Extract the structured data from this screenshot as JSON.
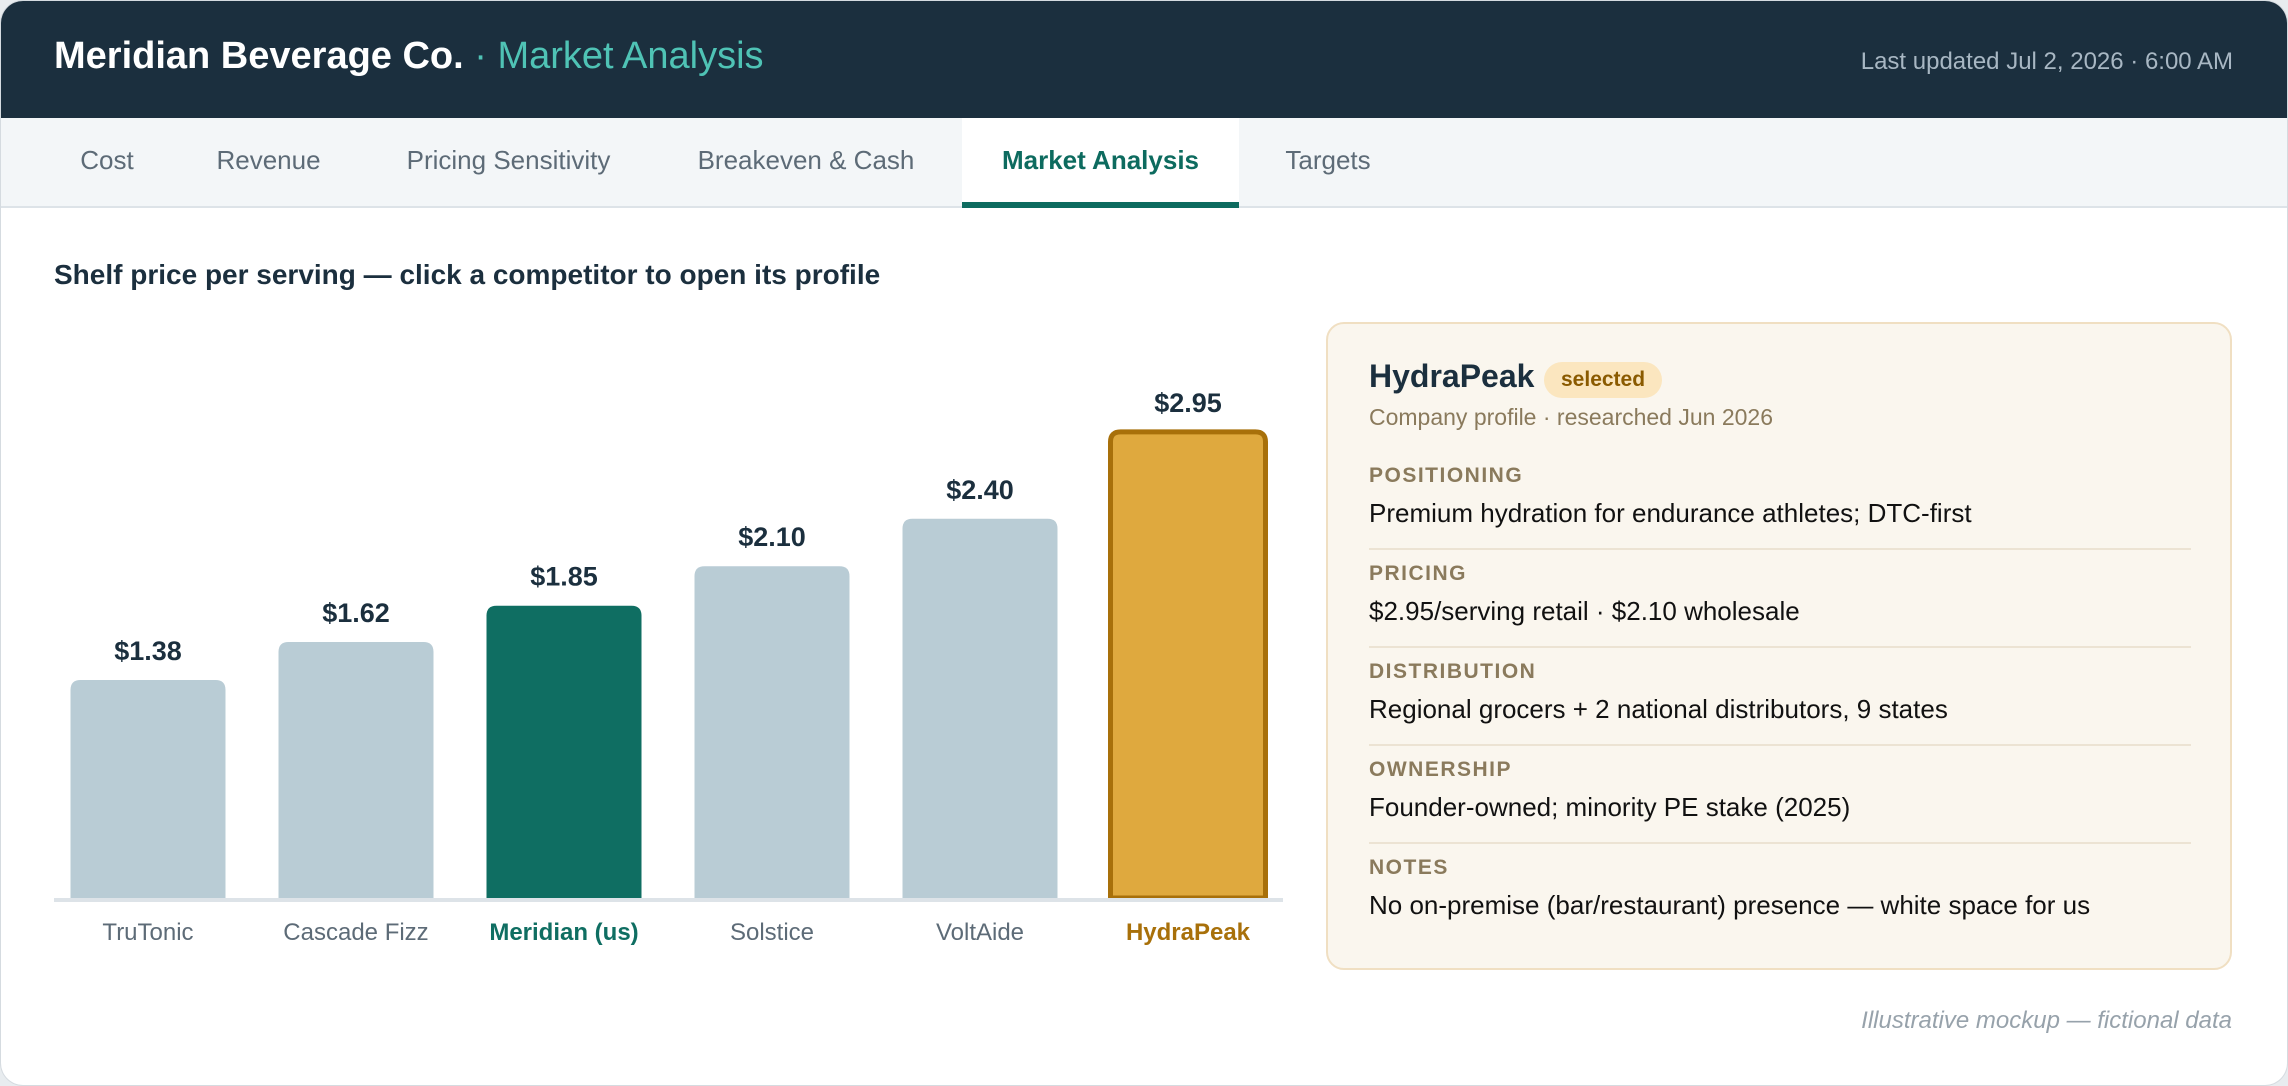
{
  "header": {
    "company": "Meridian Beverage Co.",
    "section": "· Market Analysis",
    "last_updated": "Last updated Jul 2, 2026 · 6:00 AM"
  },
  "tabs": [
    {
      "label": "Cost",
      "active": false
    },
    {
      "label": "Revenue",
      "active": false
    },
    {
      "label": "Pricing Sensitivity",
      "active": false
    },
    {
      "label": "Breakeven & Cash",
      "active": false
    },
    {
      "label": "Market Analysis",
      "active": true
    },
    {
      "label": "Targets",
      "active": false
    }
  ],
  "main": {
    "title": "Shelf price per serving — click a competitor to open its profile"
  },
  "chart_data": {
    "type": "bar",
    "title": "Shelf price per serving — click a competitor to open its profile",
    "categories": [
      "TruTonic",
      "Cascade Fizz",
      "Meridian (us)",
      "Solstice",
      "VoltAide",
      "HydraPeak"
    ],
    "values": [
      1.38,
      1.62,
      1.85,
      2.1,
      2.4,
      2.95
    ],
    "value_labels": [
      "$1.38",
      "$1.62",
      "$1.85",
      "$2.10",
      "$2.40",
      "$2.95"
    ],
    "highlight": {
      "Meridian (us)": "own",
      "HydraPeak": "selected"
    },
    "colors": {
      "default": "#b9ccd5",
      "own": "#0f6e62",
      "selected": "#dfa93e",
      "selected_border": "#a8700a",
      "selected_label": "#a8700a",
      "value_label": "#1b2f3e",
      "axis": "#dde3e8",
      "category_label": "#5d6b77"
    },
    "ylim": [
      0,
      3.0
    ],
    "grid": false,
    "xlabel": "",
    "ylabel": ""
  },
  "profile": {
    "name": "HydraPeak",
    "badge": "selected",
    "subtitle": "Company profile · researched Jun 2026",
    "fields": [
      {
        "label": "POSITIONING",
        "value": "Premium hydration for endurance athletes; DTC-first"
      },
      {
        "label": "PRICING",
        "value": "$2.95/serving retail · $2.10 wholesale"
      },
      {
        "label": "DISTRIBUTION",
        "value": "Regional grocers + 2 national distributors, 9 states"
      },
      {
        "label": "OWNERSHIP",
        "value": "Founder-owned; minority PE stake (2025)"
      },
      {
        "label": "NOTES",
        "value": "No on-premise (bar/restaurant) presence — white space for us"
      }
    ]
  },
  "footnote": "Illustrative mockup — fictional data"
}
